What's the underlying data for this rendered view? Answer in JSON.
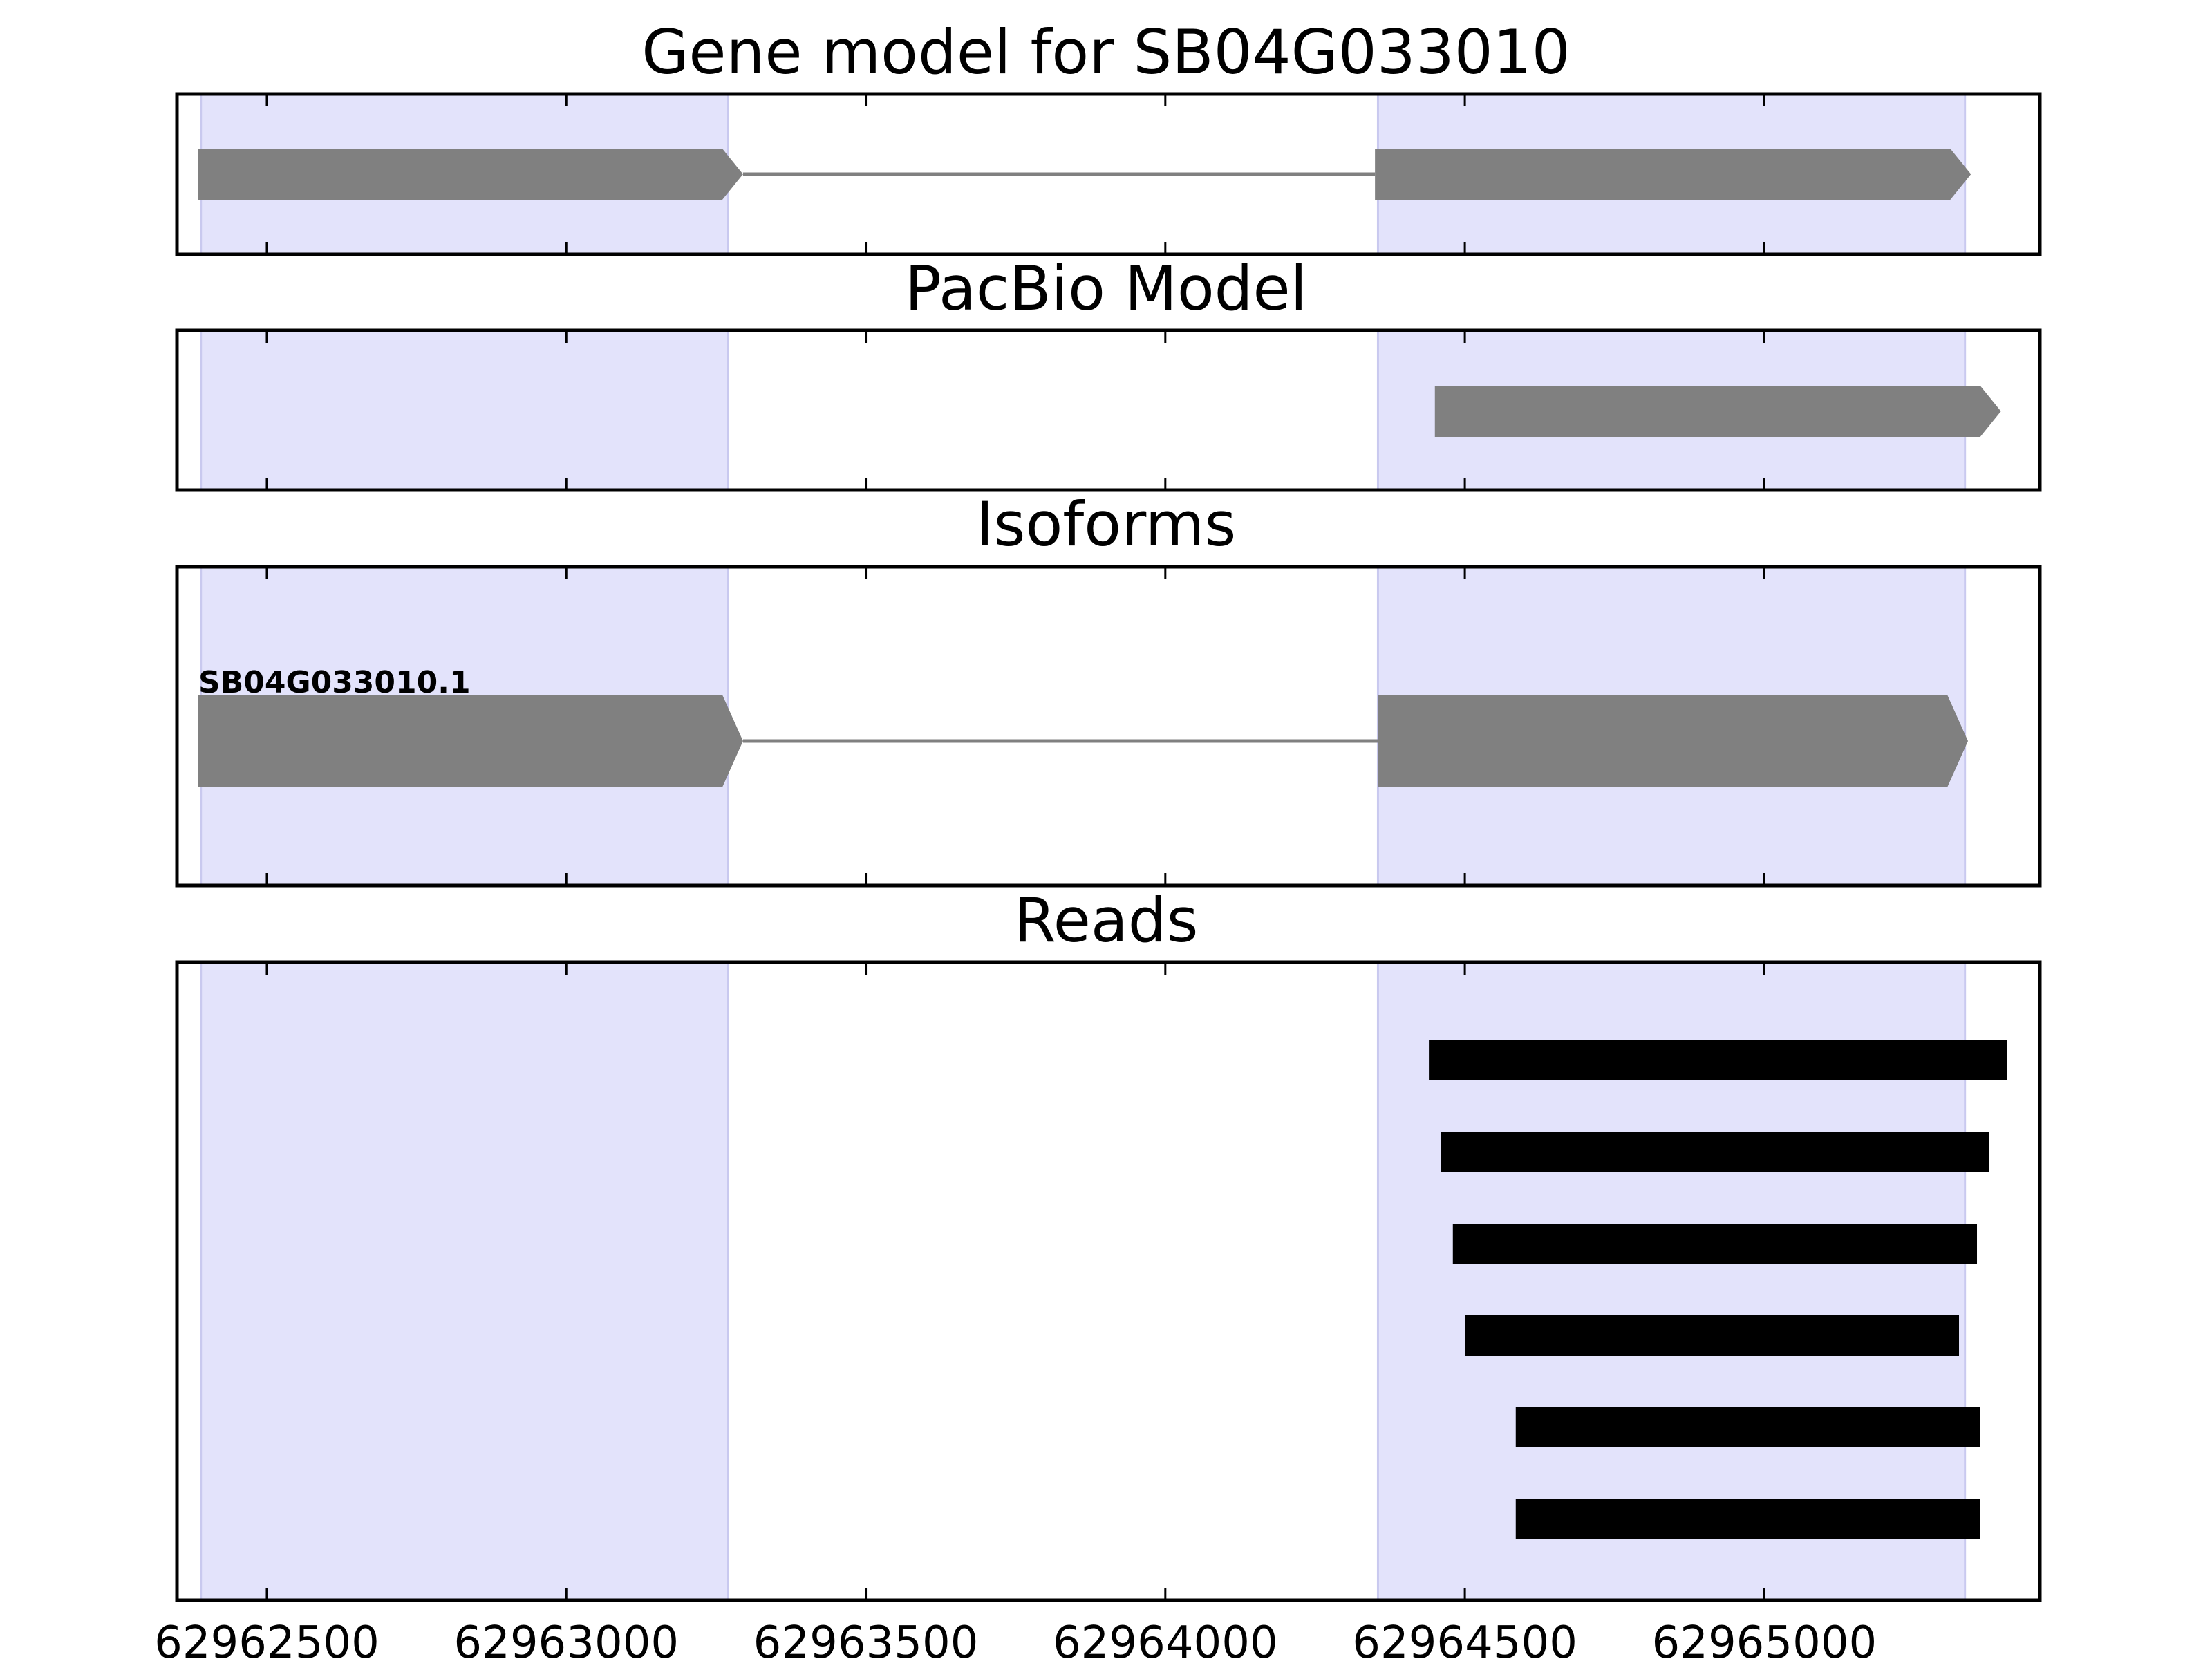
{
  "colors": {
    "exon_region": "#e3e3fb",
    "exon_region_edge": "#c9c9ef",
    "model": "#808080",
    "read": "#000000",
    "frame": "#000000"
  },
  "chart_data": {
    "type": "gene-track",
    "x_domain": [
      62962350,
      62965460
    ],
    "x_ticks": [
      62962500,
      62963000,
      62963500,
      62964000,
      62964500,
      62965000
    ],
    "x_tick_labels": [
      "62962500",
      "62963000",
      "62963500",
      "62964000",
      "62964500",
      "62965000"
    ],
    "highlight_regions": [
      [
        62962390,
        62963270
      ],
      [
        62964355,
        62965335
      ]
    ],
    "panels": [
      {
        "id": "gene",
        "title": "Gene model for SB04G033010",
        "tracks": [
          {
            "label": "",
            "exons": [
              [
                62962385,
                62963295
              ],
              [
                62964350,
                62965345
              ]
            ],
            "intron": [
              62963295,
              62964350
            ]
          }
        ]
      },
      {
        "id": "pacbio",
        "title": "PacBio Model",
        "tracks": [
          {
            "label": "",
            "exons": [
              [
                62964450,
                62965395
              ]
            ],
            "intron": null
          }
        ]
      },
      {
        "id": "isoforms",
        "title": "Isoforms",
        "tracks": [
          {
            "label": "SB04G033010.1",
            "exons": [
              [
                62962385,
                62963295
              ],
              [
                62964355,
                62965340
              ]
            ],
            "intron": [
              62963295,
              62964355
            ]
          }
        ]
      },
      {
        "id": "reads",
        "title": "Reads",
        "reads": [
          [
            62964440,
            62965405
          ],
          [
            62964460,
            62965375
          ],
          [
            62964480,
            62965355
          ],
          [
            62964500,
            62965325
          ],
          [
            62964585,
            62965360
          ],
          [
            62964585,
            62965360
          ]
        ]
      }
    ]
  }
}
